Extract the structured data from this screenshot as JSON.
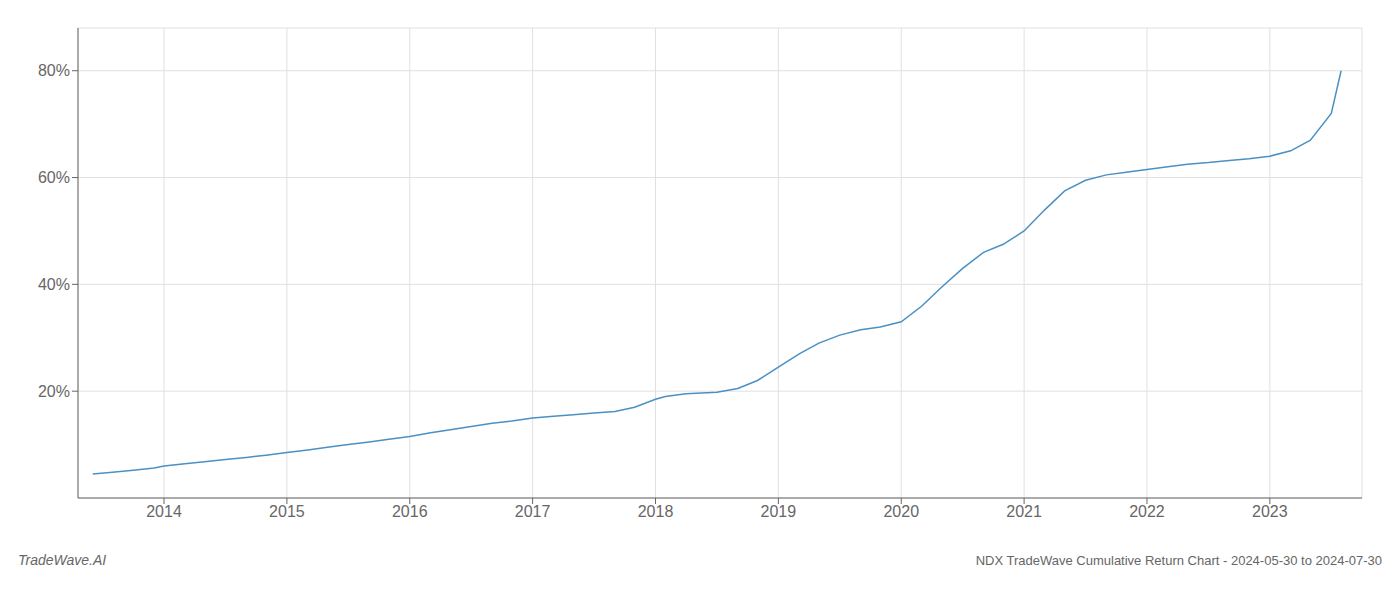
{
  "chart_data": {
    "type": "line",
    "title": "NDX TradeWave Cumulative Return Chart - 2024-05-30 to 2024-07-30",
    "annotations": [
      "TradeWave.AI"
    ],
    "color": "#4a90c4",
    "marker": "none",
    "grid": true,
    "x": [
      2013.42,
      2013.58,
      2013.75,
      2013.92,
      2014.0,
      2014.17,
      2014.33,
      2014.5,
      2014.67,
      2014.83,
      2015.0,
      2015.17,
      2015.33,
      2015.5,
      2015.67,
      2015.83,
      2016.0,
      2016.17,
      2016.33,
      2016.5,
      2016.67,
      2016.83,
      2017.0,
      2017.17,
      2017.33,
      2017.5,
      2017.67,
      2017.83,
      2018.0,
      2018.08,
      2018.17,
      2018.25,
      2018.33,
      2018.42,
      2018.5,
      2018.67,
      2018.83,
      2019.0,
      2019.17,
      2019.33,
      2019.5,
      2019.67,
      2019.83,
      2020.0,
      2020.17,
      2020.33,
      2020.5,
      2020.67,
      2020.83,
      2021.0,
      2021.17,
      2021.33,
      2021.5,
      2021.67,
      2021.83,
      2022.0,
      2022.17,
      2022.33,
      2022.5,
      2022.67,
      2022.83,
      2023.0,
      2023.17,
      2023.33,
      2023.5,
      2023.58
    ],
    "values": [
      4.5,
      4.8,
      5.2,
      5.6,
      6.0,
      6.4,
      6.8,
      7.2,
      7.6,
      8.0,
      8.5,
      9.0,
      9.5,
      10.0,
      10.5,
      11.0,
      11.5,
      12.2,
      12.8,
      13.4,
      14.0,
      14.4,
      15.0,
      15.3,
      15.6,
      15.9,
      16.2,
      17.0,
      18.5,
      19.0,
      19.3,
      19.5,
      19.6,
      19.7,
      19.8,
      20.5,
      22.0,
      24.5,
      27.0,
      29.0,
      30.5,
      31.5,
      32.0,
      33.0,
      36.0,
      39.5,
      43.0,
      46.0,
      47.5,
      50.0,
      54.0,
      57.5,
      59.5,
      60.5,
      61.0,
      61.5,
      62.0,
      62.5,
      62.8,
      63.2,
      63.5,
      64.0,
      65.0,
      67.0,
      72.0,
      80.0
    ],
    "xlim": [
      2013.3,
      2023.75
    ],
    "ylim": [
      0,
      88
    ],
    "xticks": [
      2014,
      2015,
      2016,
      2017,
      2018,
      2019,
      2020,
      2021,
      2022,
      2023
    ],
    "yticks": [
      {
        "value": 20,
        "label": "20%"
      },
      {
        "value": 40,
        "label": "40%"
      },
      {
        "value": 60,
        "label": "60%"
      },
      {
        "value": 80,
        "label": "80%"
      }
    ]
  }
}
